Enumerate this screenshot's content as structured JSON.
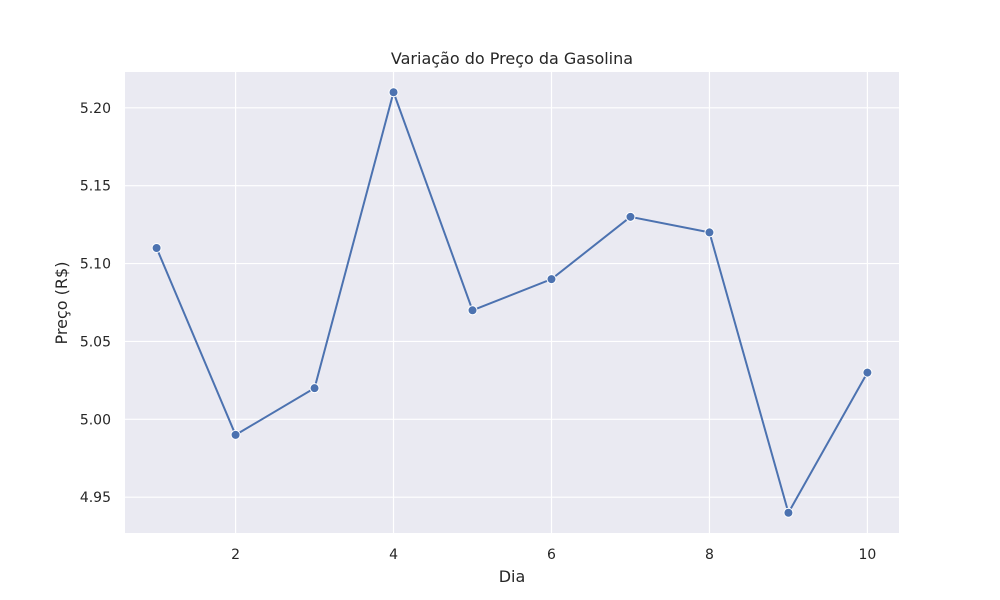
{
  "chart_data": {
    "type": "line",
    "title": "Variação do Preço da Gasolina",
    "xlabel": "Dia",
    "ylabel": "Preço (R$)",
    "x": [
      1,
      2,
      3,
      4,
      5,
      6,
      7,
      8,
      9,
      10
    ],
    "series": [
      {
        "values": [
          5.11,
          4.99,
          5.02,
          5.21,
          5.07,
          5.09,
          5.13,
          5.12,
          4.94,
          5.03
        ]
      }
    ],
    "xlim": [
      0.6,
      10.4
    ],
    "ylim": [
      4.927,
      5.223
    ],
    "xticks": [
      2,
      4,
      6,
      8,
      10
    ],
    "xtick_labels": [
      "2",
      "4",
      "6",
      "8",
      "10"
    ],
    "yticks": [
      4.95,
      5.0,
      5.05,
      5.1,
      5.15,
      5.2
    ],
    "ytick_labels": [
      "4.95",
      "5.00",
      "5.05",
      "5.10",
      "5.15",
      "5.20"
    ],
    "grid": true,
    "colors": {
      "background": "#eaeaf2",
      "line": "#4c72b0",
      "grid": "#ffffff"
    }
  }
}
